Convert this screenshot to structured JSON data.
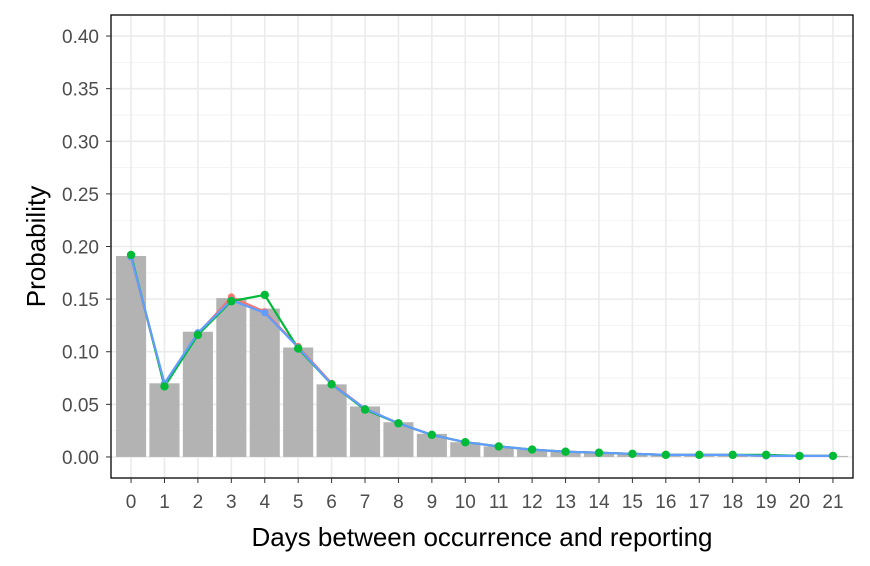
{
  "chart_data": {
    "type": "bar",
    "xlabel": "Days between occurrence and reporting",
    "ylabel": "Probability",
    "ylim": [
      -0.02,
      0.42
    ],
    "xlim": [
      -0.6,
      21.6
    ],
    "yticks": [
      0.0,
      0.05,
      0.1,
      0.15,
      0.2,
      0.25,
      0.3,
      0.35,
      0.4
    ],
    "ytick_labels": [
      "0.00",
      "0.05",
      "0.10",
      "0.15",
      "0.20",
      "0.25",
      "0.30",
      "0.35",
      "0.40"
    ],
    "categories": [
      "0",
      "1",
      "2",
      "3",
      "4",
      "5",
      "6",
      "7",
      "8",
      "9",
      "10",
      "11",
      "12",
      "13",
      "14",
      "15",
      "16",
      "17",
      "18",
      "19",
      "20",
      "21"
    ],
    "grid": true,
    "bars": {
      "color": "#b3b3b3",
      "values": [
        0.191,
        0.07,
        0.119,
        0.151,
        0.141,
        0.104,
        0.069,
        0.048,
        0.033,
        0.022,
        0.014,
        0.01,
        0.007,
        0.005,
        0.004,
        0.003,
        0.003,
        0.002,
        0.002,
        0.002,
        0.001,
        0.001
      ]
    },
    "series": [
      {
        "color": "#f8766d",
        "values": [
          0.19,
          0.068,
          0.117,
          0.152,
          0.138,
          0.105,
          0.07,
          0.046,
          0.032,
          0.021,
          0.014,
          0.01,
          0.007,
          0.005,
          0.004,
          0.003,
          0.002,
          0.002,
          0.002,
          0.001,
          0.001,
          0.001
        ]
      },
      {
        "color": "#00ba38",
        "values": [
          0.192,
          0.067,
          0.116,
          0.148,
          0.154,
          0.103,
          0.069,
          0.045,
          0.032,
          0.021,
          0.014,
          0.01,
          0.007,
          0.005,
          0.004,
          0.003,
          0.002,
          0.002,
          0.002,
          0.002,
          0.001,
          0.001
        ]
      },
      {
        "color": "#619cff",
        "values": [
          0.19,
          0.07,
          0.118,
          0.149,
          0.137,
          0.104,
          0.069,
          0.046,
          0.032,
          0.021,
          0.014,
          0.01,
          0.007,
          0.005,
          0.004,
          0.003,
          0.002,
          0.002,
          0.002,
          0.001,
          0.001,
          0.001
        ]
      }
    ],
    "point_series_color": "#00ba38"
  }
}
